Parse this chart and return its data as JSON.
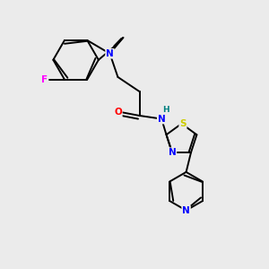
{
  "background_color": "#ebebeb",
  "bond_color": "#000000",
  "atom_colors": {
    "N": "#0000ff",
    "O": "#ff0000",
    "F": "#ff00ff",
    "S": "#cccc00",
    "H": "#008080",
    "C": "#000000"
  }
}
